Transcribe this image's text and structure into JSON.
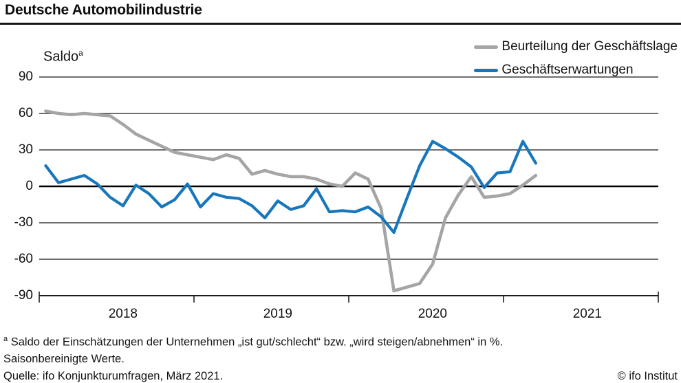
{
  "header": {
    "title": "Deutsche Automobilindustrie"
  },
  "footnotes": {
    "note_sup": "a",
    "note_text": "Saldo der Einschätzungen der Unternehmen „ist gut/schlecht“ bzw. „wird steigen/abnehmen“ in %.",
    "line2": "Saisonbereinigte Werte.",
    "source": "Quelle: ifo Konjunkturumfragen, März 2021.",
    "copyright": "© ifo Institut"
  },
  "colors": {
    "text": "#121212",
    "background": "#ffffff",
    "gridline": "#3f3f3f",
    "zero_line": "#000000",
    "axis": "#1d1d1d"
  },
  "chart_data": {
    "type": "line",
    "title": "Deutsche Automobilindustrie",
    "y_axis_title": "Saldo",
    "y_axis_title_superscript": "a",
    "ylabel": "Saldo in %",
    "ylim": [
      -90,
      90
    ],
    "y_ticks": [
      90,
      60,
      30,
      0,
      -30,
      -60,
      -90
    ],
    "grid": true,
    "legend_position": "top-right",
    "x_axis_span": {
      "start": "2018-01",
      "end": "2021-12",
      "total_months": 48
    },
    "x_year_tick_month_indices": [
      0,
      12,
      24,
      36,
      48
    ],
    "x_year_labels": [
      "2018",
      "2019",
      "2020",
      "2021"
    ],
    "x": [
      "2018-01",
      "2018-02",
      "2018-03",
      "2018-04",
      "2018-05",
      "2018-06",
      "2018-07",
      "2018-08",
      "2018-09",
      "2018-10",
      "2018-11",
      "2018-12",
      "2019-01",
      "2019-02",
      "2019-03",
      "2019-04",
      "2019-05",
      "2019-06",
      "2019-07",
      "2019-08",
      "2019-09",
      "2019-10",
      "2019-11",
      "2019-12",
      "2020-01",
      "2020-02",
      "2020-03",
      "2020-04",
      "2020-05",
      "2020-06",
      "2020-07",
      "2020-08",
      "2020-09",
      "2020-10",
      "2020-11",
      "2020-12",
      "2021-01",
      "2021-02",
      "2021-03"
    ],
    "series": [
      {
        "name": "Beurteilung der Geschäftslage",
        "color": "#a5a5a5",
        "values": [
          62,
          60,
          59,
          60,
          59,
          58,
          51,
          43,
          38,
          33,
          28,
          26,
          24,
          22,
          26,
          23,
          10,
          13,
          10,
          8,
          8,
          6,
          2,
          0,
          11,
          6,
          -18,
          -86,
          -83,
          -80,
          -64,
          -26,
          -7,
          8,
          -9,
          -8,
          -6,
          1,
          9
        ]
      },
      {
        "name": "Geschäftserwartungen",
        "color": "#1876bc",
        "values": [
          17,
          3,
          6,
          9,
          2,
          -9,
          -16,
          1,
          -6,
          -17,
          -11,
          2,
          -17,
          -6,
          -9,
          -10,
          -16,
          -26,
          -12,
          -19,
          -16,
          -2,
          -21,
          -20,
          -21,
          -17,
          -25,
          -38,
          -10,
          17,
          37,
          31,
          24,
          16,
          -1,
          11,
          12,
          37,
          19
        ]
      }
    ]
  }
}
